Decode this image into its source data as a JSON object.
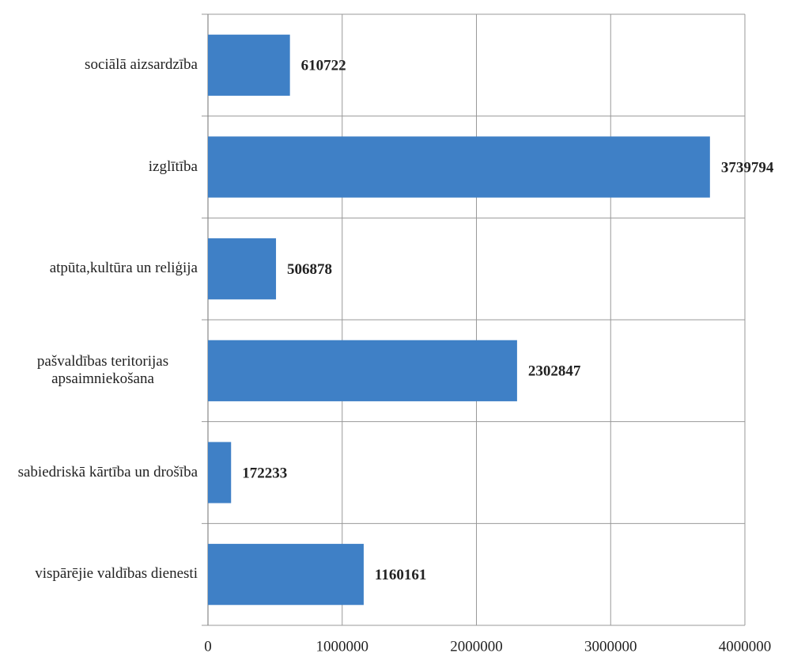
{
  "chart_data": {
    "type": "barh",
    "categories": [
      "sociālā aizsardzība",
      "izglītība",
      "atpūta,kultūra un reliģija",
      "pašvaldības teritorijas apsaimniekošana",
      "sabiedriskā kārtība un drošība",
      "vispārējie valdības dienesti"
    ],
    "values": [
      610722,
      3739794,
      506878,
      2302847,
      172233,
      1160161
    ],
    "color": "#3f80c6",
    "xlim": [
      0,
      4000000
    ],
    "xticks": [
      0,
      1000000,
      2000000,
      3000000,
      4000000
    ],
    "grid": true
  }
}
